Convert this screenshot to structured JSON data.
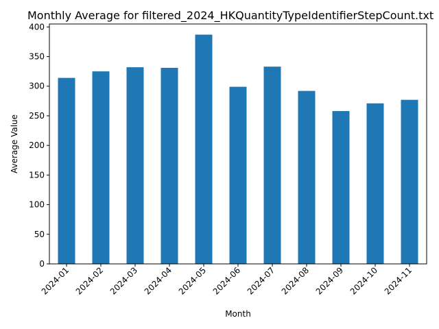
{
  "chart_data": {
    "type": "bar",
    "title": "Monthly Average for filtered_2024_HKQuantityTypeIdentifierStepCount.txt",
    "xlabel": "Month",
    "ylabel": "Average Value",
    "categories": [
      "2024-01",
      "2024-02",
      "2024-03",
      "2024-04",
      "2024-05",
      "2024-06",
      "2024-07",
      "2024-08",
      "2024-09",
      "2024-10",
      "2024-11"
    ],
    "values": [
      314,
      325,
      332,
      331,
      387,
      299,
      333,
      292,
      258,
      271,
      277
    ],
    "ylim": [
      0,
      405
    ],
    "yticks": [
      0,
      50,
      100,
      150,
      200,
      250,
      300,
      350,
      400
    ],
    "bar_color": "#1f77b4",
    "grid": false,
    "legend": "none"
  }
}
